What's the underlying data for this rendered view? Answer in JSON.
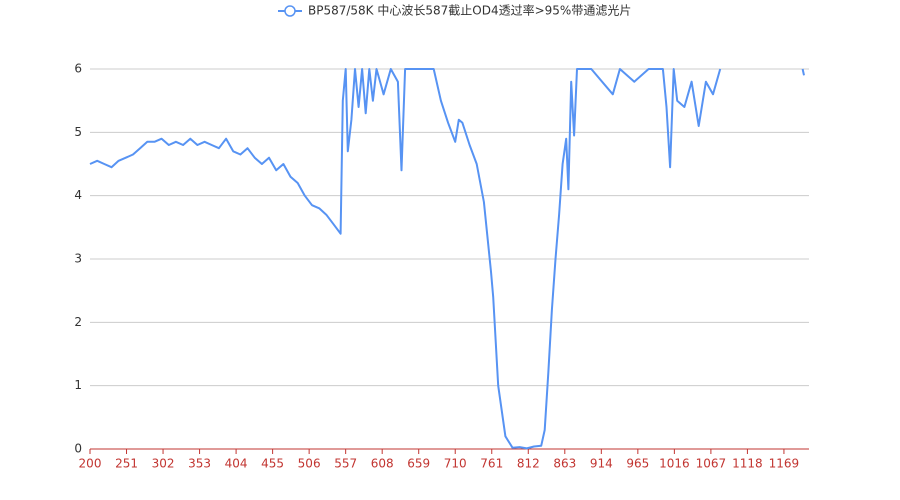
{
  "chart_data": {
    "type": "line",
    "x": [
      200,
      210,
      220,
      230,
      240,
      250,
      260,
      270,
      280,
      290,
      300,
      310,
      320,
      330,
      340,
      350,
      360,
      370,
      380,
      390,
      400,
      410,
      420,
      430,
      440,
      450,
      460,
      470,
      480,
      490,
      500,
      510,
      520,
      530,
      540,
      550,
      553,
      557,
      560,
      565,
      570,
      575,
      580,
      585,
      590,
      595,
      600,
      610,
      620,
      630,
      635,
      640,
      650,
      660,
      670,
      680,
      690,
      700,
      710,
      715,
      720,
      730,
      740,
      750,
      760,
      763,
      770,
      780,
      790,
      800,
      810,
      820,
      830,
      835,
      840,
      845,
      850,
      855,
      860,
      865,
      868,
      872,
      876,
      880,
      900,
      930,
      940,
      960,
      980,
      1000,
      1005,
      1010,
      1015,
      1020,
      1030,
      1040,
      1050,
      1060,
      1070,
      1080,
      1090,
      1190,
      1195,
      1197
    ],
    "series": [
      {
        "name": "BP587/58K 中心波长587截止OD4透过率>95%带通滤光片",
        "color": "#5793f3",
        "values": [
          4.5,
          4.55,
          4.5,
          4.45,
          4.55,
          4.6,
          4.65,
          4.75,
          4.85,
          4.85,
          4.9,
          4.8,
          4.85,
          4.8,
          4.9,
          4.8,
          4.85,
          4.8,
          4.75,
          4.9,
          4.7,
          4.65,
          4.75,
          4.6,
          4.5,
          4.6,
          4.4,
          4.5,
          4.3,
          4.2,
          4.0,
          3.85,
          3.8,
          3.7,
          3.55,
          3.4,
          5.5,
          6,
          4.7,
          5.2,
          6,
          5.4,
          6,
          5.3,
          6,
          5.5,
          6,
          5.6,
          6,
          5.8,
          4.4,
          6,
          6,
          6,
          6,
          6,
          5.5,
          5.15,
          4.85,
          5.2,
          5.15,
          4.8,
          4.5,
          3.9,
          2.8,
          2.4,
          1.0,
          0.2,
          0.02,
          0.03,
          0.01,
          0.04,
          0.05,
          0.3,
          1.2,
          2.2,
          3.0,
          3.7,
          4.5,
          4.9,
          4.1,
          5.8,
          4.95,
          6,
          6,
          5.6,
          6,
          5.8,
          6,
          6,
          5.4,
          4.45,
          6,
          5.5,
          5.4,
          5.8,
          5.1,
          5.8,
          5.6,
          6,
          null,
          null,
          6,
          5.9
        ]
      }
    ],
    "xlim": [
      200,
      1204
    ],
    "xticks": [
      200,
      251,
      302,
      353,
      404,
      455,
      506,
      557,
      608,
      659,
      710,
      761,
      812,
      863,
      914,
      965,
      1016,
      1067,
      1118,
      1169
    ],
    "ylim": [
      0,
      6
    ],
    "yticks": [
      0,
      1,
      2,
      3,
      4,
      5,
      6
    ],
    "grid": true
  }
}
